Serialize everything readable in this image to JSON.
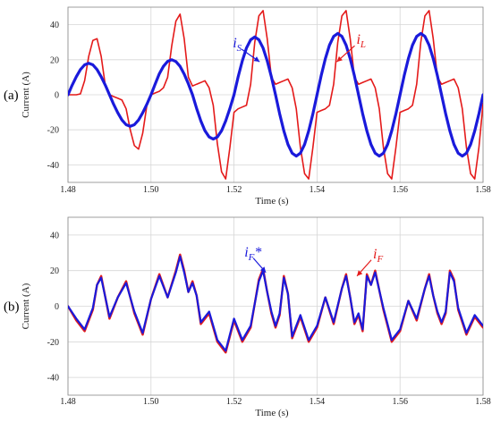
{
  "colors": {
    "red": "#e41a1a",
    "blue": "#1a1adb",
    "grid": "#d6d6d6"
  },
  "chart_data": [
    {
      "type": "line",
      "panel_label": "(a)",
      "xlabel": "Time (s)",
      "ylabel": "Current (A)",
      "xlim": [
        1.48,
        1.58
      ],
      "ylim": [
        -50,
        50
      ],
      "xticks": [
        "1.48",
        "1.50",
        "1.52",
        "1.54",
        "1.56",
        "1.58"
      ],
      "yticks": [
        "-40",
        "-20",
        "0",
        "20",
        "40"
      ],
      "grid": true,
      "annotations": [
        {
          "main": "i",
          "sub": "S",
          "color": "#1a1adb",
          "x": 1.5197,
          "y": 27
        },
        {
          "main": "i",
          "sub": "L",
          "color": "#e41a1a",
          "x": 1.5495,
          "y": 29
        }
      ],
      "series": [
        {
          "color": "#e41a1a",
          "width": 1.6,
          "x": [
            1.48,
            1.481,
            1.482,
            1.483,
            1.484,
            1.485,
            1.486,
            1.487,
            1.488,
            1.489,
            1.49,
            1.491,
            1.492,
            1.493,
            1.494,
            1.495,
            1.496,
            1.497,
            1.498,
            1.499,
            1.5,
            1.501,
            1.502,
            1.503,
            1.504,
            1.505,
            1.506,
            1.507,
            1.508,
            1.509,
            1.51,
            1.511,
            1.512,
            1.513,
            1.514,
            1.515,
            1.516,
            1.517,
            1.518,
            1.519,
            1.52,
            1.521,
            1.522,
            1.523,
            1.524,
            1.525,
            1.526,
            1.527,
            1.528,
            1.529,
            1.53,
            1.531,
            1.532,
            1.533,
            1.534,
            1.535,
            1.536,
            1.537,
            1.538,
            1.539,
            1.54,
            1.541,
            1.542,
            1.543,
            1.544,
            1.545,
            1.546,
            1.547,
            1.548,
            1.549,
            1.55,
            1.551,
            1.552,
            1.553,
            1.554,
            1.555,
            1.556,
            1.557,
            1.558,
            1.559,
            1.56,
            1.561,
            1.562,
            1.563,
            1.564,
            1.565,
            1.566,
            1.567,
            1.568,
            1.569,
            1.57,
            1.571,
            1.572,
            1.573,
            1.574,
            1.575,
            1.576,
            1.577,
            1.578,
            1.579,
            1.58
          ],
          "y": [
            0,
            0,
            0,
            0.5,
            8,
            22,
            31,
            32,
            22,
            5,
            0,
            -1,
            -2,
            -3,
            -8,
            -20,
            -29,
            -31,
            -22,
            -6,
            0,
            1,
            2,
            4,
            10,
            28,
            42,
            46,
            32,
            10,
            5,
            6,
            7,
            8,
            4,
            -6,
            -28,
            -44,
            -48,
            -30,
            -10,
            -8,
            -7,
            -6,
            6,
            30,
            45,
            48,
            32,
            10,
            6,
            7,
            8,
            9,
            4,
            -8,
            -30,
            -45,
            -48,
            -30,
            -10,
            -9,
            -8,
            -6,
            6,
            30,
            45,
            48,
            32,
            10,
            6,
            7,
            8,
            9,
            4,
            -8,
            -30,
            -45,
            -48,
            -30,
            -10,
            -9,
            -8,
            -6,
            6,
            30,
            45,
            48,
            32,
            10,
            6,
            7,
            8,
            9,
            4,
            -8,
            -30,
            -45,
            -48,
            -30,
            -5
          ]
        },
        {
          "color": "#1a1adb",
          "width": 3.2,
          "x": [
            1.48,
            1.481,
            1.482,
            1.483,
            1.484,
            1.485,
            1.486,
            1.487,
            1.488,
            1.489,
            1.49,
            1.491,
            1.492,
            1.493,
            1.494,
            1.495,
            1.496,
            1.497,
            1.498,
            1.499,
            1.5,
            1.501,
            1.502,
            1.503,
            1.504,
            1.505,
            1.506,
            1.507,
            1.508,
            1.509,
            1.51,
            1.511,
            1.512,
            1.513,
            1.514,
            1.515,
            1.516,
            1.517,
            1.518,
            1.519,
            1.52,
            1.521,
            1.522,
            1.523,
            1.524,
            1.525,
            1.526,
            1.527,
            1.528,
            1.529,
            1.53,
            1.531,
            1.532,
            1.533,
            1.534,
            1.535,
            1.536,
            1.537,
            1.538,
            1.539,
            1.54,
            1.541,
            1.542,
            1.543,
            1.544,
            1.545,
            1.546,
            1.547,
            1.548,
            1.549,
            1.55,
            1.551,
            1.552,
            1.553,
            1.554,
            1.555,
            1.556,
            1.557,
            1.558,
            1.559,
            1.56,
            1.561,
            1.562,
            1.563,
            1.564,
            1.565,
            1.566,
            1.567,
            1.568,
            1.569,
            1.57,
            1.571,
            1.572,
            1.573,
            1.574,
            1.575,
            1.576,
            1.577,
            1.578,
            1.579,
            1.58
          ],
          "y": [
            0,
            5.4,
            10.3,
            14.4,
            17.1,
            18,
            17.1,
            14.4,
            10.3,
            5.4,
            0,
            -5.4,
            -10.3,
            -14.4,
            -17.1,
            -18,
            -17.1,
            -14.4,
            -10.3,
            -5.4,
            0,
            6,
            12,
            16.2,
            19.1,
            20,
            19,
            16.2,
            11.8,
            6.2,
            0,
            -7.8,
            -14.9,
            -20.5,
            -24.1,
            -25.3,
            -24.1,
            -20.5,
            -14.9,
            -7.8,
            0,
            10.2,
            19.4,
            26.7,
            31.4,
            33,
            31.4,
            26.7,
            19.4,
            10.2,
            0,
            -10.8,
            -20.6,
            -28.3,
            -33.3,
            -35,
            -33.3,
            -28.3,
            -20.6,
            -10.8,
            0,
            10.8,
            20.6,
            28.3,
            33.3,
            35,
            33.3,
            28.3,
            20.6,
            10.8,
            0,
            -10.8,
            -20.6,
            -28.3,
            -33.3,
            -35,
            -33.3,
            -28.3,
            -20.6,
            -10.8,
            0,
            10.8,
            20.6,
            28.3,
            33.3,
            35,
            33.3,
            28.3,
            20.6,
            10.8,
            0,
            -10.8,
            -20.6,
            -28.3,
            -33.3,
            -35,
            -33.3,
            -28.3,
            -20.6,
            -10.8,
            0
          ]
        }
      ]
    },
    {
      "type": "line",
      "panel_label": "(b)",
      "xlabel": "Time (s)",
      "ylabel": "Current (A)",
      "xlim": [
        1.48,
        1.58
      ],
      "ylim": [
        -50,
        50
      ],
      "xticks": [
        "1.48",
        "1.50",
        "1.52",
        "1.54",
        "1.56",
        "1.58"
      ],
      "yticks": [
        "-40",
        "-20",
        "0",
        "20",
        "40"
      ],
      "grid": true,
      "annotations": [
        {
          "main": "i",
          "sub": "F",
          "suffix": "*",
          "color": "#1a1adb",
          "x": 1.5225,
          "y": 28
        },
        {
          "main": "i",
          "sub": "F",
          "color": "#e41a1a",
          "x": 1.5535,
          "y": 27
        }
      ],
      "series": [
        {
          "color": "#e41a1a",
          "width": 2.4,
          "x": [
            1.48,
            1.482,
            1.484,
            1.486,
            1.487,
            1.488,
            1.49,
            1.492,
            1.494,
            1.496,
            1.498,
            1.5,
            1.502,
            1.504,
            1.506,
            1.507,
            1.508,
            1.509,
            1.51,
            1.511,
            1.512,
            1.514,
            1.516,
            1.518,
            1.52,
            1.522,
            1.524,
            1.526,
            1.527,
            1.528,
            1.529,
            1.53,
            1.531,
            1.532,
            1.533,
            1.534,
            1.536,
            1.538,
            1.54,
            1.542,
            1.544,
            1.546,
            1.547,
            1.548,
            1.549,
            1.55,
            1.551,
            1.552,
            1.553,
            1.554,
            1.556,
            1.558,
            1.56,
            1.562,
            1.564,
            1.566,
            1.567,
            1.568,
            1.569,
            1.57,
            1.571,
            1.572,
            1.573,
            1.574,
            1.576,
            1.578,
            1.58
          ],
          "y": [
            0,
            -8,
            -14,
            -2,
            12,
            17,
            -7,
            5,
            14,
            -4,
            -16,
            4,
            18,
            5,
            20,
            29,
            20,
            8,
            14,
            6,
            -10,
            -4,
            -20,
            -26,
            -8,
            -20,
            -12,
            15,
            21,
            8,
            -4,
            -12,
            -5,
            17,
            7,
            -18,
            -6,
            -20,
            -12,
            5,
            -10,
            10,
            18,
            5,
            -10,
            -5,
            -14,
            18,
            12,
            20,
            -2,
            -20,
            -14,
            3,
            -8,
            10,
            18,
            6,
            -4,
            -10,
            -4,
            20,
            15,
            -2,
            -16,
            -6,
            -12
          ]
        },
        {
          "color": "#1a1adb",
          "width": 2.2,
          "x": [
            1.48,
            1.482,
            1.484,
            1.486,
            1.487,
            1.488,
            1.49,
            1.492,
            1.494,
            1.496,
            1.498,
            1.5,
            1.502,
            1.504,
            1.506,
            1.507,
            1.508,
            1.509,
            1.51,
            1.511,
            1.512,
            1.514,
            1.516,
            1.518,
            1.52,
            1.522,
            1.524,
            1.526,
            1.527,
            1.528,
            1.529,
            1.53,
            1.531,
            1.532,
            1.533,
            1.534,
            1.536,
            1.538,
            1.54,
            1.542,
            1.544,
            1.546,
            1.547,
            1.548,
            1.549,
            1.55,
            1.551,
            1.552,
            1.553,
            1.554,
            1.556,
            1.558,
            1.56,
            1.562,
            1.564,
            1.566,
            1.567,
            1.568,
            1.569,
            1.57,
            1.571,
            1.572,
            1.573,
            1.574,
            1.576,
            1.578,
            1.58
          ],
          "y": [
            0,
            -7,
            -13,
            -1,
            12,
            16,
            -6,
            5,
            13,
            -3,
            -15,
            4,
            17,
            5,
            19,
            28,
            19,
            8,
            13,
            6,
            -9,
            -3,
            -19,
            -25,
            -7,
            -19,
            -11,
            14,
            20,
            8,
            -3,
            -11,
            -4,
            16,
            7,
            -17,
            -5,
            -19,
            -11,
            5,
            -9,
            10,
            17,
            5,
            -9,
            -4,
            -13,
            17,
            12,
            19,
            -1,
            -19,
            -13,
            3,
            -7,
            10,
            17,
            6,
            -3,
            -9,
            -3,
            19,
            14,
            -1,
            -15,
            -5,
            -11
          ]
        }
      ]
    }
  ]
}
